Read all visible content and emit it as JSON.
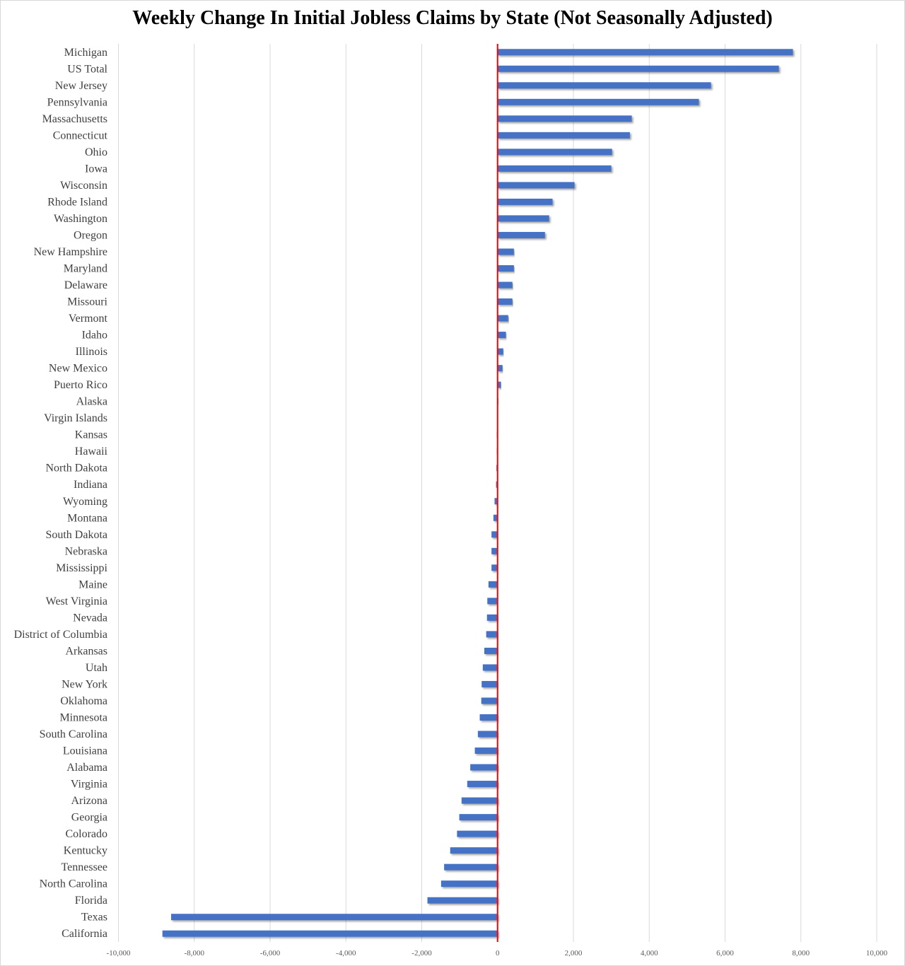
{
  "chart_data": {
    "type": "bar",
    "orientation": "horizontal",
    "title": "Weekly Change In Initial Jobless Claims by State (Not Seasonally Adjusted)",
    "xlabel": "",
    "ylabel": "",
    "xlim": [
      -10000,
      10000
    ],
    "xticks": [
      -10000,
      -8000,
      -6000,
      -4000,
      -2000,
      0,
      2000,
      4000,
      6000,
      8000,
      10000
    ],
    "xtick_labels": [
      "-10,000",
      "-8,000",
      "-6,000",
      "-4,000",
      "-2,000",
      "0",
      "2,000",
      "4,000",
      "6,000",
      "8,000",
      "10,000"
    ],
    "grid": true,
    "bar_color": "#4472c4",
    "zero_line_color": "#ff0000",
    "categories": [
      "Michigan",
      "US Total",
      "New Jersey",
      "Pennsylvania",
      "Massachusetts",
      "Connecticut",
      "Ohio",
      "Iowa",
      "Wisconsin",
      "Rhode Island",
      "Washington",
      "Oregon",
      "New Hampshire",
      "Maryland",
      "Delaware",
      "Missouri",
      "Vermont",
      "Idaho",
      "Illinois",
      "New Mexico",
      "Puerto Rico",
      "Alaska",
      "Virgin Islands",
      "Kansas",
      "Hawaii",
      "North Dakota",
      "Indiana",
      "Wyoming",
      "Montana",
      "South Dakota",
      "Nebraska",
      "Mississippi",
      "Maine",
      "West Virginia",
      "Nevada",
      "District of Columbia",
      "Arkansas",
      "Utah",
      "New York",
      "Oklahoma",
      "Minnesota",
      "South Carolina",
      "Louisiana",
      "Alabama",
      "Virginia",
      "Arizona",
      "Georgia",
      "Colorado",
      "Kentucky",
      "Tennessee",
      "North Carolina",
      "Florida",
      "Texas",
      "California"
    ],
    "values": [
      7790,
      7420,
      5630,
      5310,
      3540,
      3490,
      3020,
      3000,
      2030,
      1450,
      1360,
      1250,
      430,
      430,
      390,
      390,
      280,
      220,
      150,
      130,
      90,
      20,
      0,
      -20,
      -20,
      -30,
      -40,
      -80,
      -110,
      -160,
      -160,
      -160,
      -240,
      -270,
      -280,
      -300,
      -350,
      -390,
      -420,
      -430,
      -470,
      -520,
      -600,
      -720,
      -800,
      -950,
      -1010,
      -1070,
      -1250,
      -1410,
      -1490,
      -1850,
      -8610,
      -8840
    ]
  }
}
